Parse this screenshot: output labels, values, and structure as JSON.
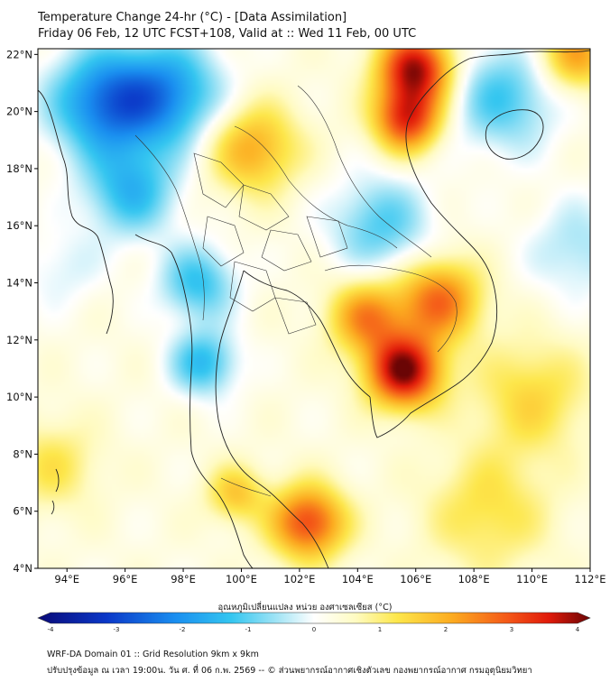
{
  "header": {
    "title_line1": "Temperature Change 24-hr (°C) - [Data Assimilation]",
    "title_line2": "Friday 06 Feb, 12 UTC FCST+108, Valid at :: Wed 11 Feb, 00 UTC"
  },
  "map": {
    "lat_labels": [
      "22°N",
      "20°N",
      "18°N",
      "16°N",
      "14°N",
      "12°N",
      "10°N",
      "8°N",
      "6°N",
      "4°N"
    ],
    "lon_labels": [
      "94°E",
      "96°E",
      "98°E",
      "100°E",
      "102°E",
      "104°E",
      "106°E",
      "108°E",
      "110°E",
      "112°E"
    ],
    "extent": {
      "lon_min": 93,
      "lon_max": 112,
      "lat_min": 4,
      "lat_max": 22.2
    },
    "anomalies": [
      {
        "lon": 95.3,
        "lat": 20.3,
        "value": -2.4,
        "spread": 1.3
      },
      {
        "lon": 97.5,
        "lat": 20.6,
        "value": -2.0,
        "spread": 1.3
      },
      {
        "lon": 96.2,
        "lat": 17.2,
        "value": -1.6,
        "spread": 1.1
      },
      {
        "lon": 98.5,
        "lat": 14.0,
        "value": -1.5,
        "spread": 0.9
      },
      {
        "lon": 98.7,
        "lat": 11.2,
        "value": -1.6,
        "spread": 0.8
      },
      {
        "lon": 104.8,
        "lat": 16.0,
        "value": -1.3,
        "spread": 1.2
      },
      {
        "lon": 109.0,
        "lat": 20.5,
        "value": -1.4,
        "spread": 1.3
      },
      {
        "lon": 111.6,
        "lat": 15.2,
        "value": -0.8,
        "spread": 1.2
      },
      {
        "lon": 93.8,
        "lat": 14.5,
        "value": -0.5,
        "spread": 1.0
      },
      {
        "lon": 106.0,
        "lat": 21.5,
        "value": 3.4,
        "spread": 0.9
      },
      {
        "lon": 105.7,
        "lat": 19.7,
        "value": 2.8,
        "spread": 0.8
      },
      {
        "lon": 105.6,
        "lat": 10.9,
        "value": 3.6,
        "spread": 0.9
      },
      {
        "lon": 106.8,
        "lat": 13.4,
        "value": 2.3,
        "spread": 1.0
      },
      {
        "lon": 104.3,
        "lat": 12.8,
        "value": 2.0,
        "spread": 0.9
      },
      {
        "lon": 102.3,
        "lat": 5.6,
        "value": 2.7,
        "spread": 0.9
      },
      {
        "lon": 100.4,
        "lat": 18.7,
        "value": 1.7,
        "spread": 1.1
      },
      {
        "lon": 99.8,
        "lat": 6.6,
        "value": 1.3,
        "spread": 0.7
      },
      {
        "lon": 93.5,
        "lat": 7.6,
        "value": 0.9,
        "spread": 1.1
      },
      {
        "lon": 111.5,
        "lat": 22.0,
        "value": 1.8,
        "spread": 0.9
      },
      {
        "lon": 110.0,
        "lat": 10.0,
        "value": 1.1,
        "spread": 1.4
      },
      {
        "lon": 108.5,
        "lat": 6.0,
        "value": 1.0,
        "spread": 1.5
      }
    ],
    "base_value": 0.8
  },
  "colorbar": {
    "label": "อุณหภูมิเปลี่ยนแปลง หน่วย องศาเซลเซียส (°C)",
    "min": -4,
    "max": 4,
    "ticks": [
      "-4",
      "-3",
      "-2",
      "-1",
      "0",
      "1",
      "2",
      "3",
      "4"
    ],
    "tick_values": [
      -4,
      -3,
      -2,
      -1,
      0,
      1,
      2,
      3,
      4
    ],
    "color_stops": [
      {
        "value": -4.0,
        "color": "#0a0a78"
      },
      {
        "value": -3.0,
        "color": "#0b38c8"
      },
      {
        "value": -2.0,
        "color": "#1a8ff0"
      },
      {
        "value": -1.2,
        "color": "#34c6f0"
      },
      {
        "value": -0.5,
        "color": "#a8e6f6"
      },
      {
        "value": 0.0,
        "color": "#ffffff"
      },
      {
        "value": 0.6,
        "color": "#fffbc2"
      },
      {
        "value": 1.2,
        "color": "#fde74b"
      },
      {
        "value": 2.0,
        "color": "#fcab20"
      },
      {
        "value": 2.8,
        "color": "#f45818"
      },
      {
        "value": 3.4,
        "color": "#e01a0a"
      },
      {
        "value": 4.0,
        "color": "#6a0505"
      }
    ]
  },
  "footer": {
    "line1": "WRF-DA Domain 01 :: Grid Resolution 9km x 9km",
    "line2": "ปรับปรุงข้อมูล ณ เวลา 19:00น. วัน ศ. ที่ 06 ก.พ. 2569 -- © ส่วนพยากรณ์อากาศเชิงตัวเลข กองพยากรณ์อากาศ กรมอุตุนิยมวิทยา"
  }
}
